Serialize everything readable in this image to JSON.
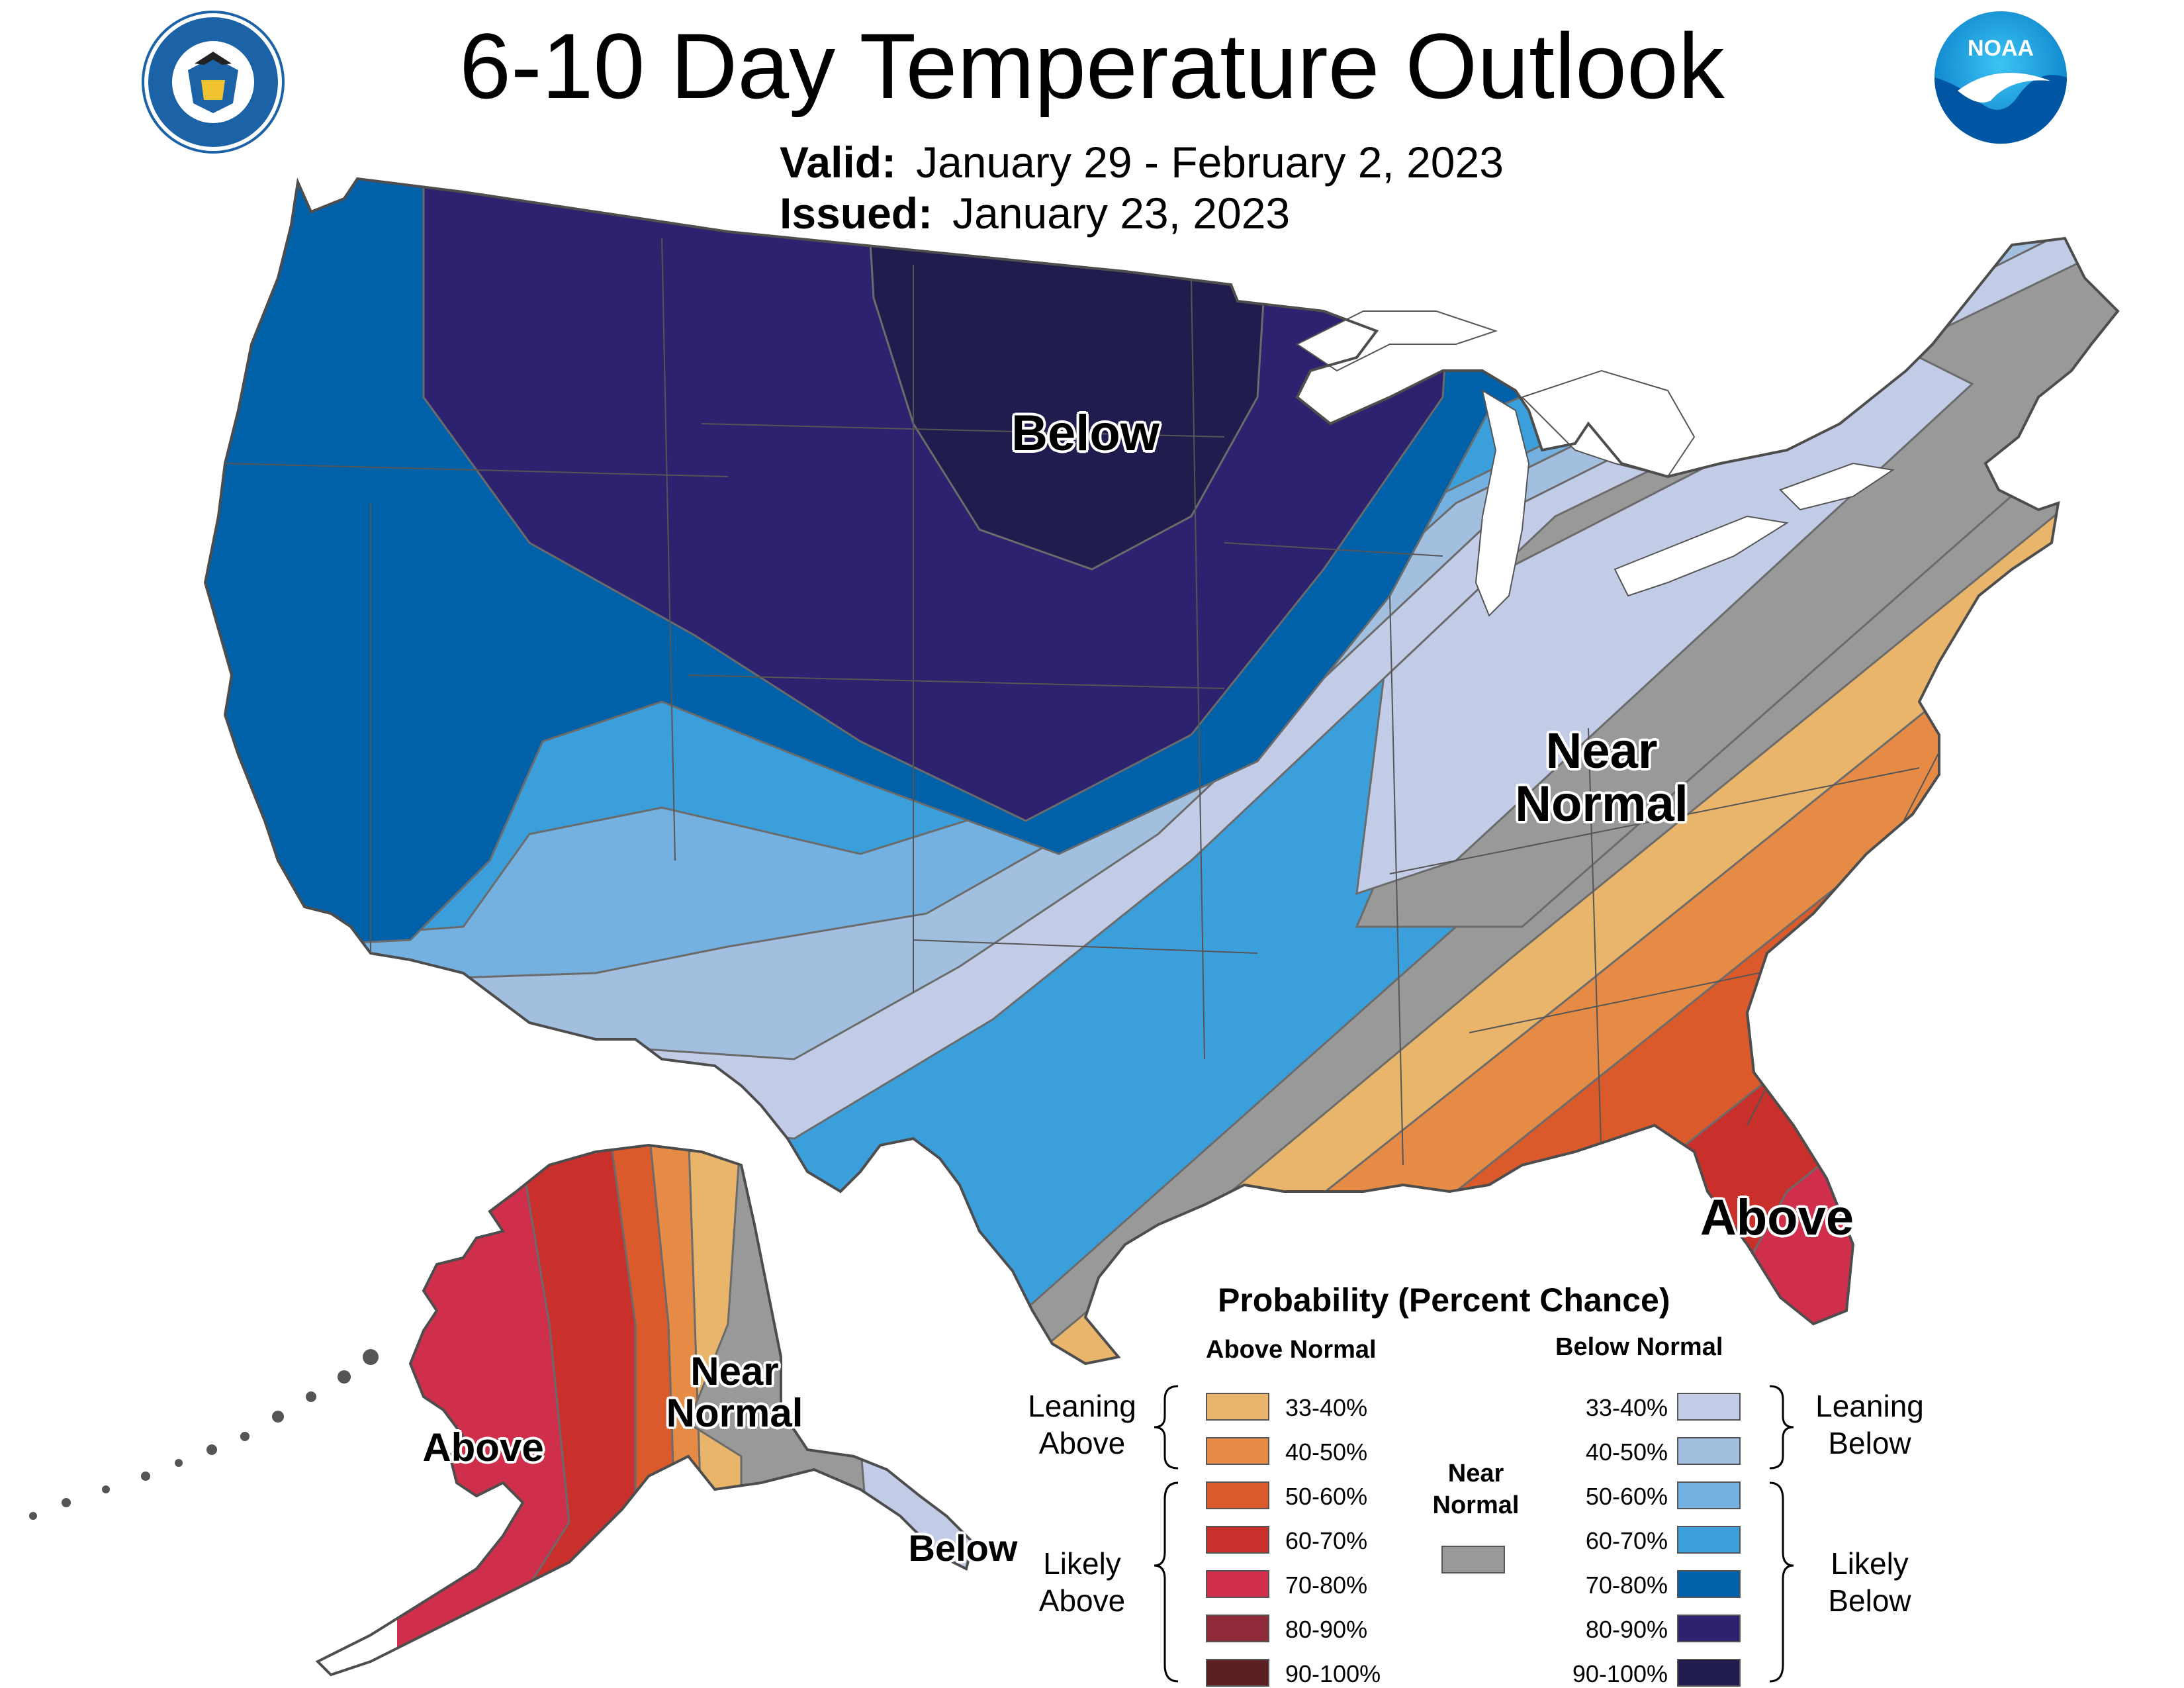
{
  "title": "6-10 Day Temperature Outlook",
  "valid_label": "Valid:",
  "valid_text": "January 29 - February 2, 2023",
  "issued_label": "Issued:",
  "issued_text": "January 23, 2023",
  "logos": {
    "left_seal_text": "DEPARTMENT OF COMMERCE · UNITED STATES OF AMERICA",
    "right_logo_text": "NOAA"
  },
  "map_labels": {
    "conus_below": "Below",
    "conus_near_line1": "Near",
    "conus_near_line2": "Normal",
    "conus_above": "Above",
    "ak_near_line1": "Near",
    "ak_near_line2": "Normal",
    "ak_above": "Above",
    "ak_below": "Below"
  },
  "legend": {
    "title": "Probability (Percent Chance)",
    "above_header": "Above Normal",
    "below_header": "Below Normal",
    "near_label_line1": "Near",
    "near_label_line2": "Normal",
    "near_color": "#999999",
    "leaning_above_line1": "Leaning",
    "leaning_above_line2": "Above",
    "likely_above_line1": "Likely",
    "likely_above_line2": "Above",
    "leaning_below_line1": "Leaning",
    "leaning_below_line2": "Below",
    "likely_below_line1": "Likely",
    "likely_below_line2": "Below",
    "above": [
      {
        "range": "33-40%",
        "color": "#e8b56a"
      },
      {
        "range": "40-50%",
        "color": "#e58b45"
      },
      {
        "range": "50-60%",
        "color": "#db5a2c"
      },
      {
        "range": "60-70%",
        "color": "#c9302c"
      },
      {
        "range": "70-80%",
        "color": "#cf2f4a"
      },
      {
        "range": "80-90%",
        "color": "#8e2a3a"
      },
      {
        "range": "90-100%",
        "color": "#5c1f24"
      }
    ],
    "below": [
      {
        "range": "33-40%",
        "color": "#c3cce6"
      },
      {
        "range": "40-50%",
        "color": "#a3bfe0"
      },
      {
        "range": "50-60%",
        "color": "#74b1e0"
      },
      {
        "range": "60-70%",
        "color": "#3b9fdb"
      },
      {
        "range": "70-80%",
        "color": "#0060a8"
      },
      {
        "range": "80-90%",
        "color": "#2c2270"
      },
      {
        "range": "90-100%",
        "color": "#211c4e"
      }
    ]
  }
}
